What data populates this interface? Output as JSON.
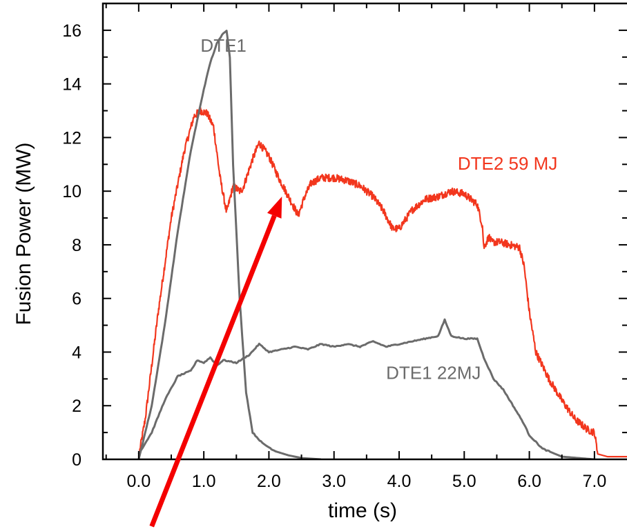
{
  "chart_data": {
    "type": "line",
    "xlabel": "time (s)",
    "ylabel": "Fusion Power (MW)",
    "xlim": [
      -0.55,
      7.5
    ],
    "ylim": [
      0,
      17
    ],
    "x_ticks": [
      "0.0",
      "1.0",
      "2.0",
      "3.0",
      "4.0",
      "5.0",
      "6.0",
      "7.0"
    ],
    "y_ticks": [
      "0",
      "2",
      "4",
      "6",
      "8",
      "10",
      "12",
      "14",
      "16"
    ],
    "grid": false,
    "legend": "none",
    "series": [
      {
        "color": "#f2361d",
        "x": [
          0.0,
          0.1,
          0.3,
          0.5,
          0.7,
          0.85,
          0.95,
          1.05,
          1.15,
          1.25,
          1.35,
          1.45,
          1.55,
          1.6,
          1.75,
          1.85,
          2.0,
          2.15,
          2.3,
          2.45,
          2.55,
          2.65,
          2.8,
          3.0,
          3.2,
          3.4,
          3.6,
          3.75,
          3.9,
          4.0,
          4.2,
          4.4,
          4.6,
          4.8,
          5.0,
          5.1,
          5.2,
          5.28,
          5.3,
          5.38,
          5.42,
          5.55,
          5.7,
          5.85,
          5.92,
          6.0,
          6.1,
          6.3,
          6.5,
          6.7,
          6.9,
          7.0,
          7.05,
          7.2,
          7.5
        ],
        "y": [
          0.1,
          1.5,
          5.5,
          9.0,
          11.5,
          12.8,
          13.0,
          12.9,
          12.4,
          10.5,
          9.2,
          10.2,
          10.0,
          10.1,
          11.2,
          11.8,
          11.3,
          10.5,
          9.8,
          9.1,
          9.8,
          10.3,
          10.5,
          10.5,
          10.4,
          10.2,
          9.8,
          9.3,
          8.6,
          8.6,
          9.3,
          9.7,
          9.8,
          10.0,
          9.9,
          9.7,
          9.5,
          8.7,
          7.9,
          8.3,
          8.1,
          8.1,
          8.0,
          7.9,
          7.2,
          5.5,
          4.0,
          3.0,
          2.2,
          1.5,
          1.1,
          1.0,
          0.2,
          0.1,
          0.1
        ]
      },
      {
        "color": "#6b6b6b",
        "x": [
          0.0,
          0.2,
          0.4,
          0.6,
          0.8,
          1.0,
          1.1,
          1.2,
          1.3,
          1.35,
          1.4,
          1.45,
          1.55,
          1.65,
          1.75,
          1.9,
          2.1,
          2.3,
          2.5,
          2.8
        ],
        "y": [
          0.0,
          2.0,
          5.0,
          8.5,
          11.5,
          13.8,
          14.8,
          15.5,
          15.9,
          16.0,
          15.0,
          11.0,
          6.0,
          2.5,
          1.0,
          0.6,
          0.3,
          0.15,
          0.05,
          0.0
        ]
      },
      {
        "color": "#6b6b6b",
        "x": [
          0.0,
          0.2,
          0.4,
          0.6,
          0.8,
          0.9,
          1.0,
          1.1,
          1.2,
          1.3,
          1.5,
          1.7,
          1.85,
          2.0,
          2.2,
          2.4,
          2.6,
          2.8,
          3.0,
          3.2,
          3.4,
          3.6,
          3.8,
          4.0,
          4.2,
          4.4,
          4.6,
          4.7,
          4.8,
          5.0,
          5.2,
          5.3,
          5.45,
          5.6,
          5.75,
          5.9,
          6.0,
          6.2,
          6.5,
          7.0
        ],
        "y": [
          0.2,
          1.0,
          2.2,
          3.1,
          3.3,
          3.7,
          3.6,
          3.8,
          3.5,
          3.7,
          3.6,
          3.9,
          4.3,
          4.0,
          4.1,
          4.2,
          4.1,
          4.3,
          4.2,
          4.3,
          4.2,
          4.4,
          4.2,
          4.3,
          4.4,
          4.5,
          4.6,
          5.2,
          4.6,
          4.5,
          4.5,
          3.8,
          3.0,
          2.6,
          2.0,
          1.4,
          0.9,
          0.4,
          0.1,
          0.0
        ]
      }
    ],
    "annotations": [
      {
        "text": "DTE1",
        "x": 0.95,
        "y": 15.2,
        "color": "#6b6b6b"
      },
      {
        "text": "DTE2 59 MJ",
        "x": 4.9,
        "y": 10.8,
        "color": "#f2361d"
      },
      {
        "text": "DTE1  22MJ",
        "x": 3.8,
        "y": 3.0,
        "color": "#6b6b6b"
      }
    ],
    "overlay_arrow": {
      "color": "#f40000",
      "from": {
        "x": 0.2,
        "y": -2.5
      },
      "to": {
        "x": 2.2,
        "y": 9.8
      }
    }
  }
}
